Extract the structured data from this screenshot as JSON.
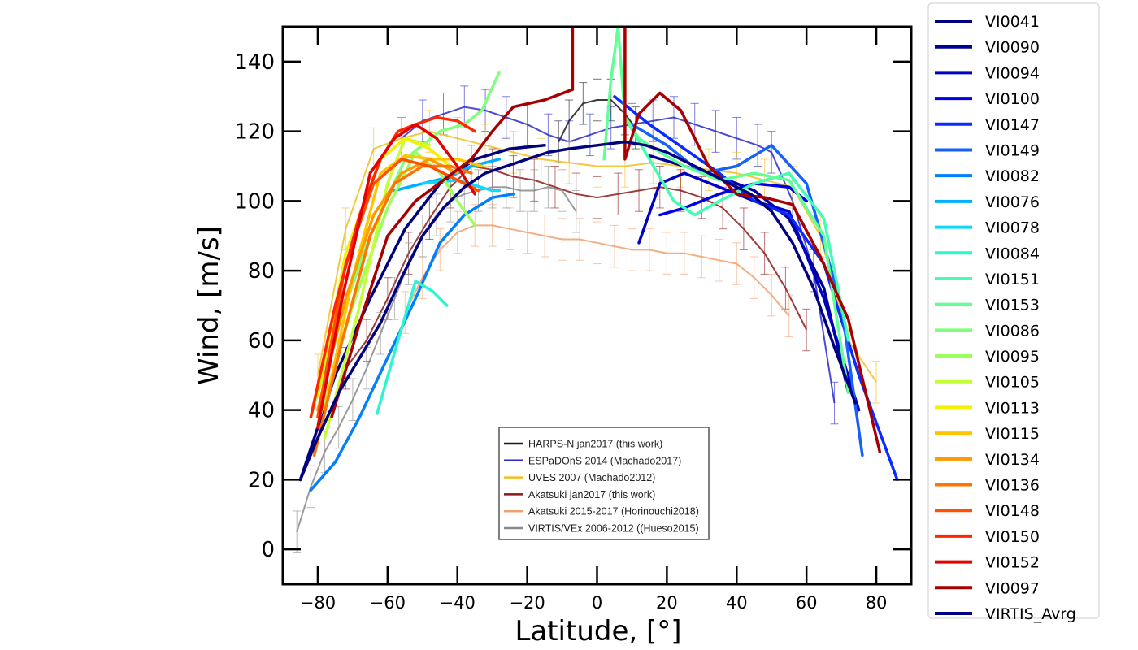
{
  "chart_data": {
    "type": "line",
    "xlabel": "Latitude, [°]",
    "ylabel": "Wind, [m/s]",
    "xlim": [
      -90,
      90
    ],
    "ylim": [
      -10,
      150
    ],
    "xticks": [
      -80,
      -60,
      -40,
      -20,
      0,
      20,
      40,
      60,
      80
    ],
    "xtick_labels": [
      "−80",
      "−60",
      "−40",
      "−20",
      "0",
      "20",
      "40",
      "60",
      "80"
    ],
    "yticks": [
      0,
      20,
      40,
      60,
      80,
      100,
      120,
      140
    ],
    "ytick_labels": [
      "0",
      "20",
      "40",
      "60",
      "80",
      "100",
      "120",
      "140"
    ],
    "grid": false,
    "legend_position": "outside-right",
    "series": [
      {
        "name": "VI0041",
        "color": "#00007f",
        "x": [
          -85,
          -75,
          -65,
          -55,
          -45,
          -35,
          -25,
          -15
        ],
        "y": [
          20,
          50,
          72,
          92,
          105,
          112,
          115,
          116
        ]
      },
      {
        "name": "VI0090",
        "color": "#00009a",
        "x": [
          15,
          25,
          35,
          45,
          55,
          65,
          72
        ],
        "y": [
          113,
          110,
          107,
          103,
          95,
          75,
          45
        ]
      },
      {
        "name": "VI0094",
        "color": "#0000c5",
        "x": [
          12,
          18,
          25,
          35,
          45,
          55,
          65,
          75
        ],
        "y": [
          88,
          105,
          108,
          104,
          100,
          97,
          72,
          40
        ]
      },
      {
        "name": "VI0100",
        "color": "#0000e6",
        "x": [
          18,
          25,
          35,
          45,
          55,
          60
        ],
        "y": [
          96,
          98,
          102,
          105,
          104,
          100
        ]
      },
      {
        "name": "VI0147",
        "color": "#0a2aff",
        "x": [
          5,
          15,
          25,
          35,
          45,
          55,
          65,
          75,
          86
        ],
        "y": [
          130,
          122,
          115,
          108,
          100,
          96,
          82,
          50,
          20
        ]
      },
      {
        "name": "VI0149",
        "color": "#1560ff",
        "x": [
          10,
          20,
          30,
          40,
          50,
          60,
          70,
          76
        ],
        "y": [
          122,
          116,
          108,
          110,
          116,
          105,
          70,
          27
        ]
      },
      {
        "name": "VI0082",
        "color": "#0080ff",
        "x": [
          -82,
          -75,
          -68,
          -60,
          -52,
          -45,
          -38,
          -30,
          -24
        ],
        "y": [
          17,
          25,
          38,
          55,
          72,
          88,
          96,
          101,
          102
        ]
      },
      {
        "name": "VI0076",
        "color": "#00b0ff",
        "x": [
          -58,
          -50,
          -42,
          -36,
          -28
        ],
        "y": [
          103,
          105,
          107,
          110,
          112
        ]
      },
      {
        "name": "VI0078",
        "color": "#10d8f8",
        "x": [
          -50,
          -40,
          -30,
          -28
        ],
        "y": [
          105,
          106,
          103,
          103
        ]
      },
      {
        "name": "VI0084",
        "color": "#2ef4d0",
        "x": [
          -63,
          -57,
          -52,
          -47,
          -43
        ],
        "y": [
          39,
          60,
          77,
          74,
          70
        ]
      },
      {
        "name": "VI0151",
        "color": "#44fcb4",
        "x": [
          8,
          15,
          22,
          28,
          35,
          45,
          55,
          65,
          72
        ],
        "y": [
          124,
          112,
          100,
          96,
          100,
          105,
          108,
          95,
          60
        ]
      },
      {
        "name": "VI0153",
        "color": "#62ff95",
        "x": [
          2,
          4,
          6,
          8,
          12,
          18,
          25,
          35,
          45,
          55,
          65,
          72
        ],
        "y": [
          112,
          135,
          150,
          124,
          118,
          114,
          110,
          106,
          108,
          106,
          90,
          45
        ]
      },
      {
        "name": "VI0086",
        "color": "#80ff7b",
        "x": [
          -82,
          -75,
          -65,
          -55,
          -45,
          -38,
          -33,
          -28
        ],
        "y": [
          38,
          62,
          90,
          112,
          120,
          122,
          126,
          137
        ]
      },
      {
        "name": "VI0095",
        "color": "#9cff5e",
        "x": [
          -80,
          -70,
          -60,
          -52,
          -45,
          -40,
          -35
        ],
        "y": [
          36,
          70,
          98,
          114,
          108,
          100,
          93
        ]
      },
      {
        "name": "VI0105",
        "color": "#c4ff36",
        "x": [
          -78,
          -68,
          -60,
          -55,
          -48
        ],
        "y": [
          32,
          70,
          105,
          118,
          116
        ]
      },
      {
        "name": "VI0113",
        "color": "#f2f200",
        "x": [
          -80,
          -72,
          -62,
          -55,
          -48,
          -42
        ],
        "y": [
          44,
          85,
          112,
          118,
          115,
          110
        ]
      },
      {
        "name": "VI0115",
        "color": "#ffc400",
        "x": [
          -78,
          -70,
          -62,
          -55,
          -47,
          -40,
          -33
        ],
        "y": [
          40,
          78,
          108,
          113,
          112,
          112,
          110
        ]
      },
      {
        "name": "VI0134",
        "color": "#ff9a00",
        "x": [
          -80,
          -72,
          -64,
          -56,
          -48,
          -40
        ],
        "y": [
          40,
          72,
          96,
          108,
          112,
          108
        ]
      },
      {
        "name": "VI0136",
        "color": "#ff7300",
        "x": [
          -81,
          -73,
          -65,
          -58,
          -50,
          -42,
          -36
        ],
        "y": [
          27,
          60,
          90,
          105,
          110,
          110,
          108
        ]
      },
      {
        "name": "VI0148",
        "color": "#ff5000",
        "x": [
          -80,
          -72,
          -64,
          -56,
          -48,
          -40,
          -34
        ],
        "y": [
          38,
          82,
          105,
          112,
          110,
          106,
          103
        ]
      },
      {
        "name": "VI0150",
        "color": "#ff2600",
        "x": [
          -82,
          -75,
          -68,
          -62,
          -57,
          -52,
          -46,
          -40,
          -35
        ],
        "y": [
          38,
          70,
          96,
          112,
          120,
          122,
          124,
          123,
          120
        ]
      },
      {
        "name": "VI0152",
        "color": "#e60000",
        "x": [
          -80,
          -73,
          -65,
          -58,
          -52,
          -46,
          -40,
          -35
        ],
        "y": [
          35,
          72,
          108,
          118,
          122,
          118,
          110,
          102
        ]
      },
      {
        "name": "VI0097",
        "color": "#a80000",
        "x": [
          -76,
          -68,
          -60,
          -52,
          -44,
          -36,
          -30,
          -24,
          -15,
          -7,
          -7,
          8,
          8,
          12,
          18,
          24,
          32,
          40,
          48,
          56,
          64,
          72,
          81
        ],
        "y": [
          38,
          65,
          90,
          100,
          106,
          112,
          120,
          127,
          129,
          132,
          150,
          150,
          112,
          125,
          131,
          126,
          110,
          102,
          101,
          99,
          84,
          66,
          28
        ]
      },
      {
        "name": "VIRTIS_Avrg",
        "color": "#000080",
        "x": [
          -85,
          -80,
          -74,
          -68,
          -62,
          -56,
          -50,
          -44,
          -38,
          -32,
          -26,
          -20,
          -14,
          -8,
          0,
          8,
          14,
          20,
          26,
          32,
          38,
          44,
          50,
          56,
          62,
          68,
          74
        ],
        "y": [
          20,
          32,
          45,
          55,
          65,
          78,
          90,
          98,
          104,
          108,
          110,
          112,
          114,
          115,
          116,
          117,
          116,
          114,
          111,
          108,
          105,
          102,
          97,
          88,
          75,
          58,
          42
        ]
      }
    ],
    "reference_series": [
      {
        "name": "HARPS-N jan2017 (this work)",
        "color": "#1a1a1a",
        "x": [
          -11,
          -8,
          -4,
          0,
          4,
          8,
          11
        ],
        "y": [
          117,
          123,
          128,
          129,
          129,
          125,
          121
        ]
      },
      {
        "name": "ESPaDOnS 2014 (Machado2017)",
        "color": "#2a2acc",
        "x": [
          -56,
          -50,
          -44,
          -38,
          -32,
          -26,
          -20,
          -14,
          -8,
          -2,
          4,
          10,
          16,
          22,
          28,
          34,
          40,
          46,
          50,
          56,
          62,
          68
        ],
        "y": [
          118,
          123,
          125,
          127,
          126,
          124,
          122,
          119,
          117,
          119,
          121,
          122,
          123,
          124,
          122,
          120,
          118,
          116,
          114,
          100,
          80,
          42
        ]
      },
      {
        "name": "UVES 2007 (Machado2012)",
        "color": "#f0c020",
        "x": [
          -80,
          -72,
          -64,
          -56,
          -48,
          -40,
          -32,
          -24,
          -16,
          -8,
          0,
          8,
          16,
          24,
          32,
          40,
          48,
          56,
          64,
          72,
          80
        ],
        "y": [
          50,
          92,
          115,
          118,
          120,
          118,
          116,
          114,
          112,
          111,
          110,
          110,
          111,
          110,
          109,
          108,
          106,
          104,
          90,
          60,
          48
        ]
      },
      {
        "name": "Akatsuki jan2017 (this work)",
        "color": "#8b1a1a",
        "x": [
          -72,
          -66,
          -60,
          -54,
          -48,
          -42,
          -36,
          -30,
          -24,
          -18,
          -12,
          -6,
          0,
          6,
          12,
          18,
          24,
          30,
          36,
          42,
          48,
          54,
          60
        ],
        "y": [
          52,
          60,
          72,
          85,
          95,
          104,
          110,
          109,
          107,
          106,
          104,
          102,
          101,
          102,
          103,
          104,
          103,
          101,
          98,
          92,
          85,
          75,
          63
        ]
      },
      {
        "name": "Akatsuki 2015-2017 (Horinouchi2018)",
        "color": "#f0a070",
        "x": [
          -55,
          -50,
          -45,
          -40,
          -35,
          -30,
          -25,
          -20,
          -15,
          -10,
          -5,
          0,
          5,
          10,
          15,
          20,
          25,
          30,
          35,
          40,
          45,
          50,
          55
        ],
        "y": [
          68,
          78,
          86,
          91,
          93,
          93,
          92,
          91,
          90,
          89,
          89,
          88,
          87,
          86,
          86,
          85,
          85,
          84,
          83,
          82,
          78,
          73,
          67
        ]
      },
      {
        "name": "VIRTIS/VEx 2006-2012 ((Hueso2015)",
        "color": "#8a8a8a",
        "x": [
          -86,
          -82,
          -78,
          -74,
          -70,
          -66,
          -62,
          -58,
          -54,
          -50,
          -46,
          -42,
          -38,
          -34,
          -30,
          -26,
          -22,
          -18,
          -14,
          -10,
          -6
        ],
        "y": [
          5,
          18,
          28,
          35,
          43,
          52,
          62,
          72,
          82,
          90,
          96,
          100,
          102,
          103,
          104,
          104,
          103,
          103,
          104,
          103,
          97
        ]
      }
    ],
    "inset_legend": {
      "position": "lower-center",
      "entries": [
        {
          "label": "HARPS-N jan2017 (this work)",
          "color": "#1a1a1a"
        },
        {
          "label": "ESPaDOnS 2014 (Machado2017)",
          "color": "#2a2acc"
        },
        {
          "label": "UVES 2007 (Machado2012)",
          "color": "#f0c020"
        },
        {
          "label": "Akatsuki jan2017 (this work)",
          "color": "#8b1a1a"
        },
        {
          "label": "Akatsuki 2015-2017 (Horinouchi2018)",
          "color": "#f0a070"
        },
        {
          "label": "VIRTIS/VEx 2006-2012 ((Hueso2015)",
          "color": "#8a8a8a"
        }
      ]
    }
  }
}
